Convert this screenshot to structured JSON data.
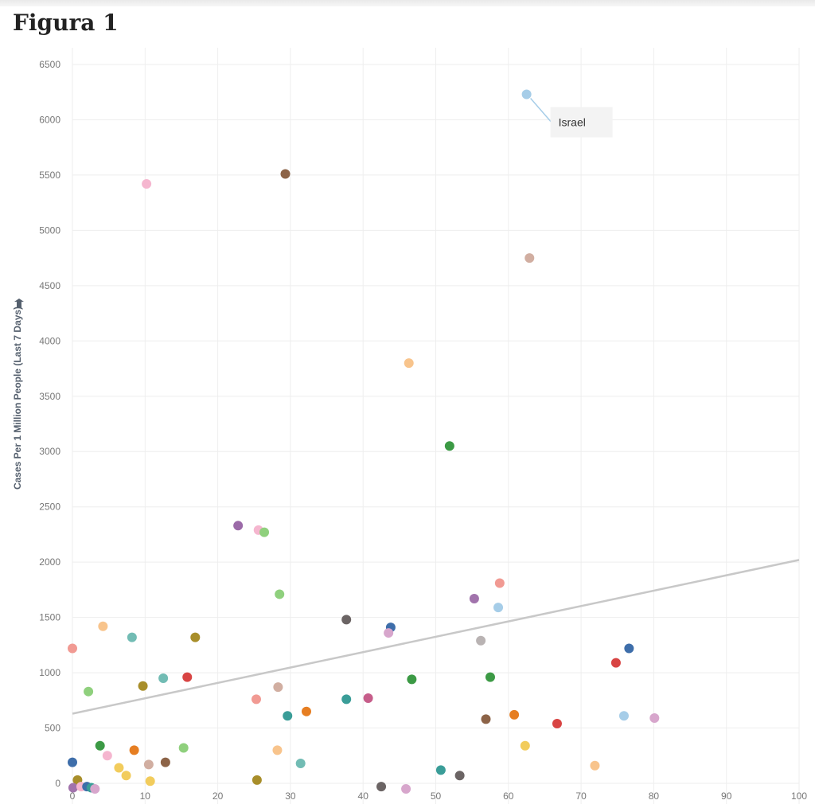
{
  "page": {
    "heading": "Figura 1"
  },
  "chart_data": {
    "type": "scatter",
    "ylabel": "Cases Per 1 Million People (Last 7 Days)",
    "xlabel": "",
    "xlim": [
      0,
      100
    ],
    "ylim": [
      -60,
      6600
    ],
    "x_ticks": [
      0,
      10,
      20,
      30,
      40,
      50,
      60,
      70,
      80,
      90,
      100
    ],
    "y_ticks": [
      0,
      500,
      1000,
      1500,
      2000,
      2500,
      3000,
      3500,
      4000,
      4500,
      5000,
      5500,
      6000,
      6500
    ],
    "grid": true,
    "trendline": {
      "x": [
        0,
        100
      ],
      "y": [
        630,
        2020
      ],
      "color": "#c8c8c8"
    },
    "annotations": [
      {
        "text": "Israel",
        "x": 62.5,
        "y": 6230
      }
    ],
    "points": [
      {
        "x": 62.5,
        "y": 6230,
        "color": "#a6cde8"
      },
      {
        "x": 29.3,
        "y": 5510,
        "color": "#8c6347"
      },
      {
        "x": 10.2,
        "y": 5420,
        "color": "#f5b6cf"
      },
      {
        "x": 62.9,
        "y": 4750,
        "color": "#d1aea1"
      },
      {
        "x": 46.3,
        "y": 3800,
        "color": "#f8c48c"
      },
      {
        "x": 51.9,
        "y": 3050,
        "color": "#3c9a45"
      },
      {
        "x": 22.8,
        "y": 2330,
        "color": "#9b6aa8"
      },
      {
        "x": 25.6,
        "y": 2290,
        "color": "#f5b6cf"
      },
      {
        "x": 26.4,
        "y": 2270,
        "color": "#8fd07d"
      },
      {
        "x": 28.5,
        "y": 1710,
        "color": "#8fd07d"
      },
      {
        "x": 58.8,
        "y": 1810,
        "color": "#f19a93"
      },
      {
        "x": 55.3,
        "y": 1670,
        "color": "#a173ac"
      },
      {
        "x": 58.6,
        "y": 1590,
        "color": "#a6cde8"
      },
      {
        "x": 37.7,
        "y": 1480,
        "color": "#6b6464"
      },
      {
        "x": 43.8,
        "y": 1410,
        "color": "#3e6eaa"
      },
      {
        "x": 43.5,
        "y": 1360,
        "color": "#d7a6cc"
      },
      {
        "x": 4.2,
        "y": 1420,
        "color": "#f8c48c"
      },
      {
        "x": 8.2,
        "y": 1320,
        "color": "#72bcb4"
      },
      {
        "x": 16.9,
        "y": 1320,
        "color": "#a88e2a"
      },
      {
        "x": 56.2,
        "y": 1290,
        "color": "#b9b3b3"
      },
      {
        "x": 0.0,
        "y": 1220,
        "color": "#f19a93"
      },
      {
        "x": 76.6,
        "y": 1220,
        "color": "#3e6eaa"
      },
      {
        "x": 74.8,
        "y": 1090,
        "color": "#d84443"
      },
      {
        "x": 12.5,
        "y": 950,
        "color": "#72bcb4"
      },
      {
        "x": 15.8,
        "y": 960,
        "color": "#d84443"
      },
      {
        "x": 46.7,
        "y": 940,
        "color": "#3c9a45"
      },
      {
        "x": 57.5,
        "y": 960,
        "color": "#3c9a45"
      },
      {
        "x": 9.7,
        "y": 880,
        "color": "#a88e2a"
      },
      {
        "x": 2.2,
        "y": 830,
        "color": "#8fd07d"
      },
      {
        "x": 28.3,
        "y": 870,
        "color": "#d1aea1"
      },
      {
        "x": 25.3,
        "y": 760,
        "color": "#f19a93"
      },
      {
        "x": 37.7,
        "y": 760,
        "color": "#3a9d98"
      },
      {
        "x": 40.7,
        "y": 770,
        "color": "#c65d8a"
      },
      {
        "x": 32.2,
        "y": 650,
        "color": "#e67e22"
      },
      {
        "x": 29.6,
        "y": 610,
        "color": "#3a9d98"
      },
      {
        "x": 56.9,
        "y": 580,
        "color": "#8c6347"
      },
      {
        "x": 60.8,
        "y": 620,
        "color": "#e67e22"
      },
      {
        "x": 66.7,
        "y": 540,
        "color": "#d84443"
      },
      {
        "x": 75.9,
        "y": 610,
        "color": "#a6cde8"
      },
      {
        "x": 80.1,
        "y": 590,
        "color": "#d7a6cc"
      },
      {
        "x": 3.8,
        "y": 340,
        "color": "#3c9a45"
      },
      {
        "x": 15.3,
        "y": 320,
        "color": "#8fd07d"
      },
      {
        "x": 8.5,
        "y": 300,
        "color": "#e67e22"
      },
      {
        "x": 28.2,
        "y": 300,
        "color": "#f8c48c"
      },
      {
        "x": 62.3,
        "y": 340,
        "color": "#f2cc5c"
      },
      {
        "x": 0.0,
        "y": 190,
        "color": "#3e6eaa"
      },
      {
        "x": 4.8,
        "y": 250,
        "color": "#f5b6cf"
      },
      {
        "x": 6.4,
        "y": 140,
        "color": "#f2cc5c"
      },
      {
        "x": 10.5,
        "y": 170,
        "color": "#d1aea1"
      },
      {
        "x": 12.8,
        "y": 190,
        "color": "#8c6347"
      },
      {
        "x": 31.4,
        "y": 180,
        "color": "#72bcb4"
      },
      {
        "x": 50.7,
        "y": 120,
        "color": "#3a9d98"
      },
      {
        "x": 71.9,
        "y": 160,
        "color": "#f8c48c"
      },
      {
        "x": 7.4,
        "y": 70,
        "color": "#f2cc5c"
      },
      {
        "x": 53.3,
        "y": 70,
        "color": "#6b6464"
      },
      {
        "x": 0.7,
        "y": 30,
        "color": "#a88e2a"
      },
      {
        "x": 10.7,
        "y": 20,
        "color": "#f2cc5c"
      },
      {
        "x": 25.4,
        "y": 30,
        "color": "#a88e2a"
      },
      {
        "x": 0.1,
        "y": -40,
        "color": "#a173ac"
      },
      {
        "x": 1.2,
        "y": -30,
        "color": "#f5b6cf"
      },
      {
        "x": 2.0,
        "y": -30,
        "color": "#3e6eaa"
      },
      {
        "x": 2.6,
        "y": -40,
        "color": "#3a9d98"
      },
      {
        "x": 3.1,
        "y": -50,
        "color": "#d7a6cc"
      },
      {
        "x": 42.5,
        "y": -30,
        "color": "#6b6464"
      },
      {
        "x": 45.9,
        "y": -50,
        "color": "#d7a6cc"
      }
    ]
  }
}
